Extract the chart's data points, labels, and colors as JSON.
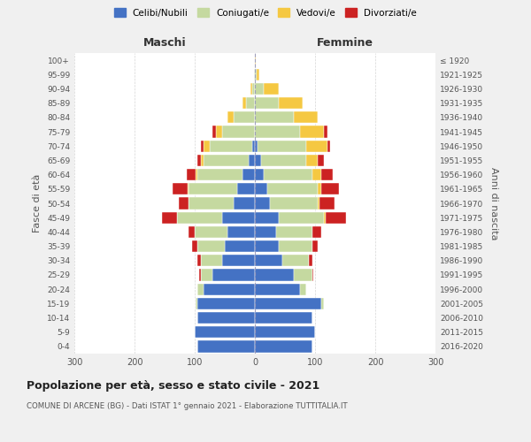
{
  "age_groups": [
    "0-4",
    "5-9",
    "10-14",
    "15-19",
    "20-24",
    "25-29",
    "30-34",
    "35-39",
    "40-44",
    "45-49",
    "50-54",
    "55-59",
    "60-64",
    "65-69",
    "70-74",
    "75-79",
    "80-84",
    "85-89",
    "90-94",
    "95-99",
    "100+"
  ],
  "birth_years": [
    "2016-2020",
    "2011-2015",
    "2006-2010",
    "2001-2005",
    "1996-2000",
    "1991-1995",
    "1986-1990",
    "1981-1985",
    "1976-1980",
    "1971-1975",
    "1966-1970",
    "1961-1965",
    "1956-1960",
    "1951-1955",
    "1946-1950",
    "1941-1945",
    "1936-1940",
    "1931-1935",
    "1926-1930",
    "1921-1925",
    "≤ 1920"
  ],
  "male": {
    "celibe": [
      95,
      100,
      95,
      95,
      85,
      70,
      55,
      50,
      45,
      55,
      35,
      30,
      20,
      10,
      5,
      0,
      0,
      0,
      0,
      0,
      0
    ],
    "coniugato": [
      0,
      0,
      0,
      3,
      10,
      20,
      35,
      45,
      55,
      75,
      75,
      80,
      75,
      75,
      70,
      55,
      35,
      15,
      5,
      1,
      0
    ],
    "vedovo": [
      0,
      0,
      0,
      0,
      0,
      0,
      0,
      0,
      0,
      0,
      1,
      2,
      3,
      5,
      10,
      10,
      10,
      5,
      2,
      0,
      0
    ],
    "divorziato": [
      0,
      0,
      0,
      0,
      1,
      2,
      5,
      10,
      10,
      25,
      15,
      25,
      15,
      5,
      5,
      5,
      0,
      0,
      0,
      0,
      0
    ]
  },
  "female": {
    "nubile": [
      95,
      100,
      95,
      110,
      75,
      65,
      45,
      40,
      35,
      40,
      25,
      20,
      15,
      10,
      5,
      0,
      0,
      0,
      0,
      0,
      0
    ],
    "coniugata": [
      0,
      0,
      0,
      5,
      10,
      30,
      45,
      55,
      60,
      75,
      80,
      85,
      80,
      75,
      80,
      75,
      65,
      40,
      15,
      3,
      0
    ],
    "vedova": [
      0,
      0,
      0,
      0,
      0,
      0,
      0,
      0,
      0,
      2,
      3,
      5,
      15,
      20,
      35,
      40,
      40,
      40,
      25,
      5,
      2
    ],
    "divorziata": [
      0,
      0,
      0,
      0,
      1,
      2,
      5,
      10,
      15,
      35,
      25,
      30,
      20,
      10,
      5,
      5,
      0,
      0,
      0,
      0,
      0
    ]
  },
  "colors": {
    "celibe": "#4472c4",
    "coniugato": "#c5d9a0",
    "vedovo": "#f5c842",
    "divorziato": "#cc2222"
  },
  "xlim": 300,
  "title": "Popolazione per età, sesso e stato civile - 2021",
  "subtitle": "COMUNE DI ARCENE (BG) - Dati ISTAT 1° gennaio 2021 - Elaborazione TUTTITALIA.IT",
  "ylabel_left": "Fasce di età",
  "ylabel_right": "Anni di nascita",
  "xlabel_left": "Maschi",
  "xlabel_right": "Femmine",
  "background_color": "#f0f0f0",
  "plot_bg": "#ffffff"
}
